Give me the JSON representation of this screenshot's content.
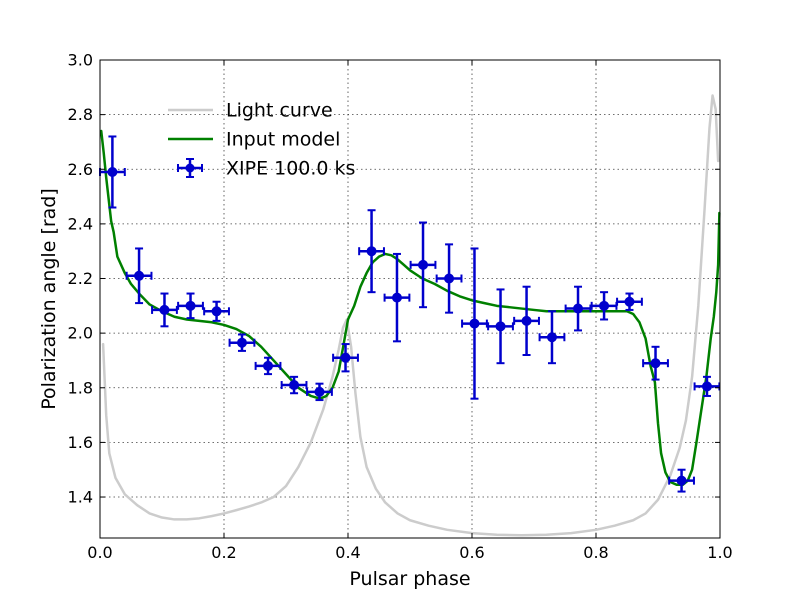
{
  "chart_data": {
    "type": "scatter",
    "title": "",
    "xlabel": "Pulsar phase",
    "ylabel": "Polarization angle [rad]",
    "xlim": [
      0.0,
      1.0
    ],
    "ylim": [
      1.25,
      3.0
    ],
    "grid": true,
    "legend_position": "top-left",
    "x_ticks": [
      {
        "value": 0.0,
        "label": "0.0"
      },
      {
        "value": 0.2,
        "label": "0.2"
      },
      {
        "value": 0.4,
        "label": "0.4"
      },
      {
        "value": 0.6,
        "label": "0.6"
      },
      {
        "value": 0.8,
        "label": "0.8"
      },
      {
        "value": 1.0,
        "label": "1.0"
      }
    ],
    "y_ticks": [
      {
        "value": 1.4,
        "label": "1.4"
      },
      {
        "value": 1.6,
        "label": "1.6"
      },
      {
        "value": 1.8,
        "label": "1.8"
      },
      {
        "value": 2.0,
        "label": "2.0"
      },
      {
        "value": 2.2,
        "label": "2.2"
      },
      {
        "value": 2.4,
        "label": "2.4"
      },
      {
        "value": 2.6,
        "label": "2.6"
      },
      {
        "value": 2.8,
        "label": "2.8"
      },
      {
        "value": 3.0,
        "label": "3.0"
      }
    ],
    "series": [
      {
        "name": "Light curve",
        "kind": "line",
        "color": "#cccccc",
        "points": [
          [
            0.005,
            1.96
          ],
          [
            0.01,
            1.7
          ],
          [
            0.015,
            1.56
          ],
          [
            0.025,
            1.47
          ],
          [
            0.04,
            1.41
          ],
          [
            0.06,
            1.37
          ],
          [
            0.08,
            1.34
          ],
          [
            0.1,
            1.325
          ],
          [
            0.12,
            1.318
          ],
          [
            0.14,
            1.318
          ],
          [
            0.16,
            1.322
          ],
          [
            0.18,
            1.33
          ],
          [
            0.2,
            1.34
          ],
          [
            0.22,
            1.352
          ],
          [
            0.24,
            1.365
          ],
          [
            0.26,
            1.38
          ],
          [
            0.28,
            1.4
          ],
          [
            0.3,
            1.44
          ],
          [
            0.32,
            1.51
          ],
          [
            0.34,
            1.6
          ],
          [
            0.36,
            1.72
          ],
          [
            0.375,
            1.84
          ],
          [
            0.385,
            1.94
          ],
          [
            0.392,
            2.02
          ],
          [
            0.398,
            2.05
          ],
          [
            0.405,
            1.95
          ],
          [
            0.412,
            1.78
          ],
          [
            0.42,
            1.62
          ],
          [
            0.43,
            1.51
          ],
          [
            0.445,
            1.43
          ],
          [
            0.46,
            1.38
          ],
          [
            0.48,
            1.34
          ],
          [
            0.5,
            1.315
          ],
          [
            0.53,
            1.295
          ],
          [
            0.56,
            1.28
          ],
          [
            0.6,
            1.268
          ],
          [
            0.64,
            1.262
          ],
          [
            0.68,
            1.26
          ],
          [
            0.72,
            1.262
          ],
          [
            0.76,
            1.268
          ],
          [
            0.8,
            1.28
          ],
          [
            0.83,
            1.295
          ],
          [
            0.86,
            1.315
          ],
          [
            0.88,
            1.34
          ],
          [
            0.9,
            1.39
          ],
          [
            0.92,
            1.48
          ],
          [
            0.935,
            1.58
          ],
          [
            0.945,
            1.68
          ],
          [
            0.955,
            1.84
          ],
          [
            0.965,
            2.1
          ],
          [
            0.975,
            2.45
          ],
          [
            0.983,
            2.75
          ],
          [
            0.988,
            2.87
          ],
          [
            0.993,
            2.82
          ],
          [
            0.997,
            2.63
          ]
        ]
      },
      {
        "name": "Input model",
        "kind": "line",
        "color": "#008000",
        "points": [
          [
            0.002,
            2.74
          ],
          [
            0.006,
            2.66
          ],
          [
            0.01,
            2.57
          ],
          [
            0.014,
            2.49
          ],
          [
            0.018,
            2.41
          ],
          [
            0.022,
            2.37
          ],
          [
            0.028,
            2.28
          ],
          [
            0.04,
            2.22
          ],
          [
            0.05,
            2.18
          ],
          [
            0.065,
            2.14
          ],
          [
            0.08,
            2.105
          ],
          [
            0.1,
            2.08
          ],
          [
            0.12,
            2.06
          ],
          [
            0.14,
            2.05
          ],
          [
            0.16,
            2.045
          ],
          [
            0.18,
            2.04
          ],
          [
            0.2,
            2.03
          ],
          [
            0.22,
            2.015
          ],
          [
            0.24,
            1.99
          ],
          [
            0.26,
            1.95
          ],
          [
            0.28,
            1.9
          ],
          [
            0.3,
            1.85
          ],
          [
            0.32,
            1.8
          ],
          [
            0.34,
            1.77
          ],
          [
            0.355,
            1.76
          ],
          [
            0.365,
            1.77
          ],
          [
            0.375,
            1.8
          ],
          [
            0.385,
            1.86
          ],
          [
            0.393,
            1.96
          ],
          [
            0.4,
            2.05
          ],
          [
            0.41,
            2.1
          ],
          [
            0.42,
            2.17
          ],
          [
            0.43,
            2.22
          ],
          [
            0.44,
            2.26
          ],
          [
            0.45,
            2.28
          ],
          [
            0.46,
            2.29
          ],
          [
            0.47,
            2.285
          ],
          [
            0.48,
            2.27
          ],
          [
            0.49,
            2.25
          ],
          [
            0.5,
            2.23
          ],
          [
            0.52,
            2.2
          ],
          [
            0.54,
            2.18
          ],
          [
            0.56,
            2.155
          ],
          [
            0.58,
            2.135
          ],
          [
            0.6,
            2.12
          ],
          [
            0.62,
            2.11
          ],
          [
            0.64,
            2.1
          ],
          [
            0.66,
            2.095
          ],
          [
            0.68,
            2.09
          ],
          [
            0.7,
            2.085
          ],
          [
            0.72,
            2.08
          ],
          [
            0.74,
            2.08
          ],
          [
            0.76,
            2.08
          ],
          [
            0.78,
            2.08
          ],
          [
            0.8,
            2.08
          ],
          [
            0.82,
            2.08
          ],
          [
            0.84,
            2.08
          ],
          [
            0.85,
            2.08
          ],
          [
            0.86,
            2.07
          ],
          [
            0.87,
            2.04
          ],
          [
            0.88,
            1.98
          ],
          [
            0.888,
            1.88
          ],
          [
            0.895,
            1.82
          ],
          [
            0.9,
            1.67
          ],
          [
            0.905,
            1.56
          ],
          [
            0.912,
            1.49
          ],
          [
            0.92,
            1.455
          ],
          [
            0.93,
            1.445
          ],
          [
            0.94,
            1.445
          ],
          [
            0.948,
            1.46
          ],
          [
            0.955,
            1.5
          ],
          [
            0.962,
            1.6
          ],
          [
            0.97,
            1.72
          ],
          [
            0.978,
            1.84
          ],
          [
            0.985,
            1.98
          ],
          [
            0.99,
            2.06
          ],
          [
            0.994,
            2.15
          ],
          [
            0.997,
            2.25
          ],
          [
            0.999,
            2.44
          ]
        ]
      },
      {
        "name": "XIPE 100.0 ks",
        "kind": "errorbar",
        "color": "#0000cc",
        "x_err": 0.02,
        "points": [
          {
            "x": 0.02,
            "y": 2.59,
            "yerr": 0.13
          },
          {
            "x": 0.063,
            "y": 2.21,
            "yerr": 0.1
          },
          {
            "x": 0.104,
            "y": 2.085,
            "yerr": 0.06
          },
          {
            "x": 0.146,
            "y": 2.1,
            "yerr": 0.045
          },
          {
            "x": 0.188,
            "y": 2.08,
            "yerr": 0.035
          },
          {
            "x": 0.229,
            "y": 1.965,
            "yerr": 0.03
          },
          {
            "x": 0.271,
            "y": 1.88,
            "yerr": 0.03
          },
          {
            "x": 0.313,
            "y": 1.81,
            "yerr": 0.03
          },
          {
            "x": 0.354,
            "y": 1.785,
            "yerr": 0.03
          },
          {
            "x": 0.396,
            "y": 1.91,
            "yerr": 0.05
          },
          {
            "x": 0.438,
            "y": 2.3,
            "yerr": 0.15
          },
          {
            "x": 0.479,
            "y": 2.13,
            "yerr": 0.16
          },
          {
            "x": 0.521,
            "y": 2.25,
            "yerr": 0.155
          },
          {
            "x": 0.563,
            "y": 2.2,
            "yerr": 0.125
          },
          {
            "x": 0.604,
            "y": 2.035,
            "yerr": 0.275
          },
          {
            "x": 0.646,
            "y": 2.025,
            "yerr": 0.135
          },
          {
            "x": 0.688,
            "y": 2.045,
            "yerr": 0.125
          },
          {
            "x": 0.729,
            "y": 1.985,
            "yerr": 0.095
          },
          {
            "x": 0.771,
            "y": 2.09,
            "yerr": 0.08
          },
          {
            "x": 0.813,
            "y": 2.1,
            "yerr": 0.05
          },
          {
            "x": 0.854,
            "y": 2.115,
            "yerr": 0.03
          },
          {
            "x": 0.896,
            "y": 1.89,
            "yerr": 0.06
          },
          {
            "x": 0.938,
            "y": 1.46,
            "yerr": 0.04
          },
          {
            "x": 0.979,
            "y": 1.805,
            "yerr": 0.035
          }
        ]
      }
    ]
  }
}
